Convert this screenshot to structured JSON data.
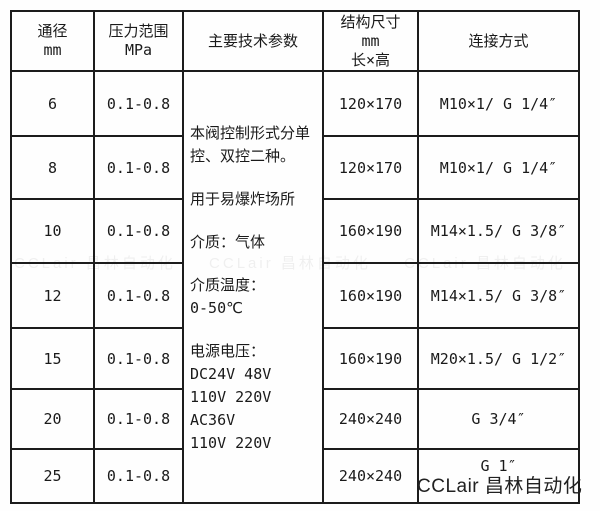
{
  "page": {
    "watermark_brand": "CCLair 昌林自动化"
  },
  "table": {
    "headers": {
      "diameter_title": "通径",
      "diameter_unit": "mm",
      "pressure_title": "压力范围",
      "pressure_unit": "MPa",
      "tech_title": "主要技术参数",
      "size_title": "结构尺寸",
      "size_unit": "mm",
      "size_sub": "长×高",
      "connection_title": "连接方式"
    },
    "tech_params": {
      "p1": "本阀控制形式分单控、双控二种。",
      "p2": "用于易爆炸场所",
      "p3": "介质：气体",
      "p4_l1": "介质温度：",
      "p4_l2": "0-50℃",
      "p5_l1": "电源电压：",
      "p5_l2": "DC24V  48V",
      "p5_l3": "110V 220V",
      "p5_l4": "AC36V",
      "p5_l5": "110V 220V"
    },
    "rows": [
      {
        "dn": "6",
        "pressure": "0.1-0.8",
        "size": "120×170",
        "connection": "M10×1/  G 1/4″"
      },
      {
        "dn": "8",
        "pressure": "0.1-0.8",
        "size": "120×170",
        "connection": "M10×1/  G 1/4″"
      },
      {
        "dn": "10",
        "pressure": "0.1-0.8",
        "size": "160×190",
        "connection": "M14×1.5/  G 3/8″"
      },
      {
        "dn": "12",
        "pressure": "0.1-0.8",
        "size": "160×190",
        "connection": "M14×1.5/  G 3/8″"
      },
      {
        "dn": "15",
        "pressure": "0.1-0.8",
        "size": "160×190",
        "connection": "M20×1.5/  G 1/2″"
      },
      {
        "dn": "20",
        "pressure": "0.1-0.8",
        "size": "240×240",
        "connection": "G 3/4″"
      },
      {
        "dn": "25",
        "pressure": "0.1-0.8",
        "size": "240×240",
        "connection": "G 1″"
      }
    ]
  }
}
